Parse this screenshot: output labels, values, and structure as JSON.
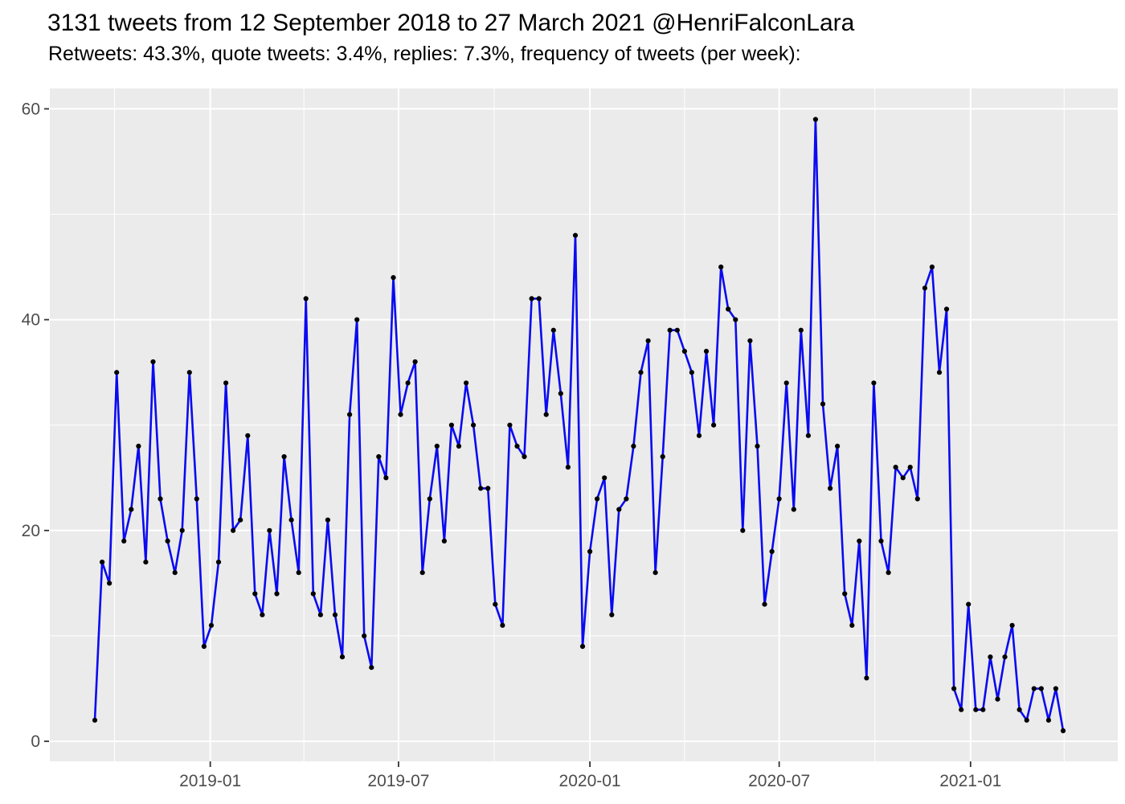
{
  "header": {
    "title": "3131 tweets from 12 September 2018 to 27 March 2021 @HenriFalconLara",
    "subtitle": "Retweets: 43.3%, quote tweets: 3.4%, replies: 7.3%, frequency of tweets (per week):"
  },
  "chart_data": {
    "type": "line",
    "title": "3131 tweets from 12 September 2018 to 27 March 2021 @HenriFalconLara",
    "subtitle": "Retweets: 43.3%, quote tweets: 3.4%, replies: 7.3%, frequency of tweets (per week):",
    "xlabel": "",
    "ylabel": "",
    "x_start_date": "2018-09-12",
    "x_interval": "weekly",
    "values": [
      2,
      17,
      15,
      35,
      19,
      22,
      28,
      17,
      36,
      23,
      19,
      16,
      20,
      35,
      23,
      9,
      11,
      17,
      34,
      20,
      21,
      29,
      14,
      12,
      20,
      14,
      27,
      21,
      16,
      42,
      14,
      12,
      21,
      12,
      8,
      31,
      40,
      10,
      7,
      27,
      25,
      44,
      31,
      34,
      36,
      16,
      23,
      28,
      19,
      30,
      28,
      34,
      30,
      24,
      24,
      13,
      11,
      30,
      28,
      27,
      42,
      42,
      31,
      39,
      33,
      26,
      48,
      9,
      18,
      23,
      25,
      12,
      22,
      23,
      28,
      35,
      38,
      16,
      27,
      39,
      39,
      37,
      35,
      29,
      37,
      30,
      45,
      41,
      40,
      20,
      38,
      28,
      13,
      18,
      23,
      34,
      22,
      39,
      29,
      59,
      32,
      24,
      28,
      14,
      11,
      19,
      6,
      34,
      19,
      16,
      26,
      25,
      26,
      23,
      43,
      45,
      35,
      41,
      5,
      3,
      13,
      3,
      3,
      8,
      4,
      8,
      11,
      3,
      2,
      5,
      5,
      2,
      5,
      1
    ],
    "total_tweets": 3131,
    "ylim": [
      0,
      60
    ],
    "y_ticks": [
      0,
      20,
      40,
      60
    ],
    "y_minor": [
      10,
      30,
      50
    ],
    "x_ticks": [
      {
        "label": "2019-01",
        "day": 111
      },
      {
        "label": "2019-07",
        "day": 292
      },
      {
        "label": "2020-01",
        "day": 476
      },
      {
        "label": "2020-07",
        "day": 658
      },
      {
        "label": "2021-01",
        "day": 842
      }
    ],
    "x_minor_days": [
      19,
      201,
      384,
      567,
      750,
      932
    ],
    "grid": true,
    "legend": "none",
    "style": {
      "line_color": "#0A0AF0",
      "point_color": "#000000",
      "panel_bg": "#EBEBEB",
      "grid_color": "#FFFFFF",
      "axis_text_color": "#4D4D4D",
      "tick_mark_color": "#333333",
      "title_color": "#000000"
    }
  }
}
